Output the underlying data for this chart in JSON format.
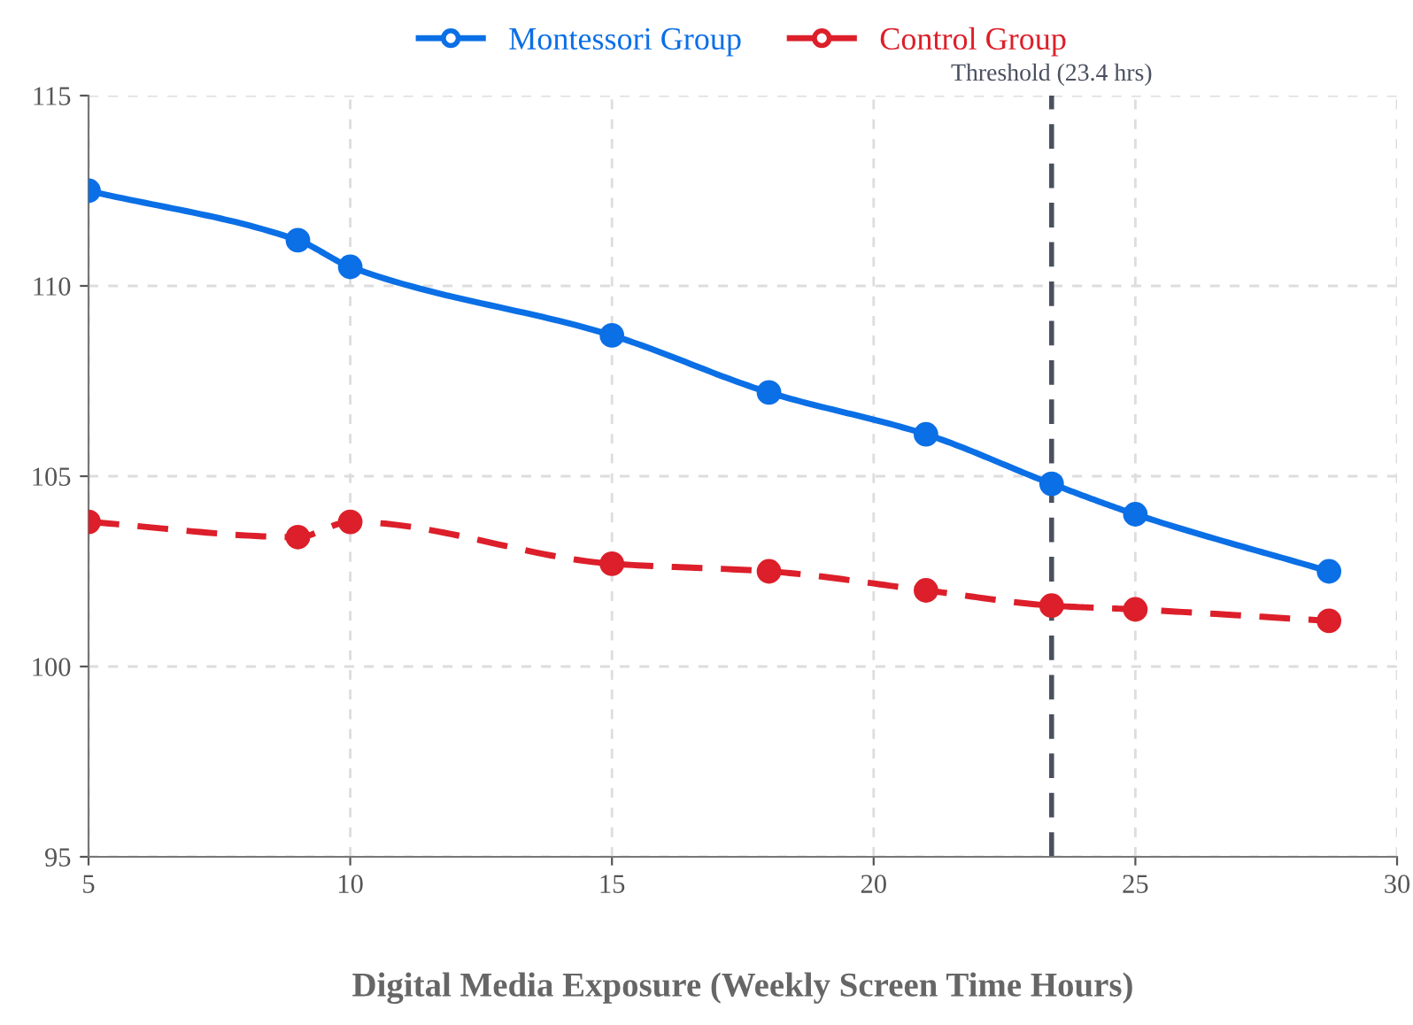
{
  "chart_data": {
    "type": "line",
    "xlabel": "Digital Media Exposure (Weekly Screen Time Hours)",
    "series": [
      {
        "name": "Montessori Group",
        "color": "#0b6fe6",
        "line_style": "solid",
        "x": [
          5,
          9,
          10,
          15,
          18,
          21,
          23.4,
          25,
          28.7
        ],
        "values": [
          112.5,
          111.2,
          110.5,
          108.7,
          107.2,
          106.1,
          104.8,
          104.0,
          102.5
        ]
      },
      {
        "name": "Control Group",
        "color": "#dc1f2a",
        "line_style": "dashed",
        "x": [
          5,
          9,
          10,
          15,
          18,
          21,
          23.4,
          25,
          28.7
        ],
        "values": [
          103.8,
          103.4,
          103.8,
          102.7,
          102.5,
          102.0,
          101.6,
          101.5,
          101.2
        ]
      }
    ],
    "xlim": [
      5,
      30
    ],
    "xticks": [
      5,
      10,
      15,
      20,
      25,
      30
    ],
    "ylim": [
      95,
      115
    ],
    "yticks": [
      95,
      100,
      105,
      110,
      115
    ],
    "ref_lines": [
      {
        "axis": "x",
        "value": 23.4,
        "label": "Threshold (23.4 hrs)",
        "color": "#4a5060",
        "line_style": "dashed"
      }
    ],
    "grid": true,
    "legend": "top",
    "marker": "circle"
  }
}
